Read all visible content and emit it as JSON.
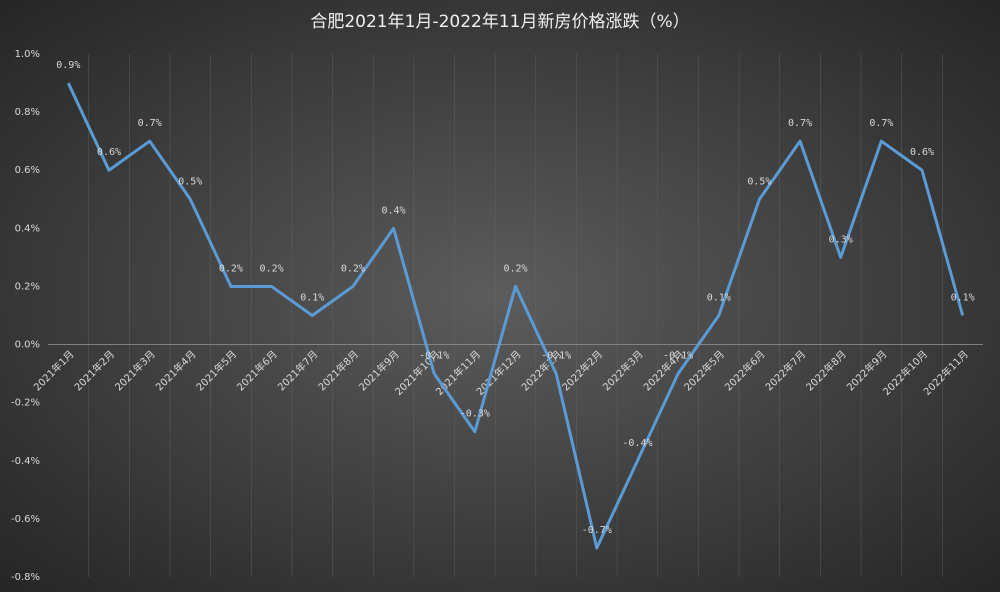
{
  "chart_data": {
    "type": "line",
    "title": "合肥2021年1月-2022年11月新房价格涨跌（%）",
    "categories": [
      "2021年1月",
      "2021年2月",
      "2021年3月",
      "2021年4月",
      "2021年5月",
      "2021年6月",
      "2021年7月",
      "2021年8月",
      "2021年9月",
      "2021年10月",
      "2021年11月",
      "2021年12月",
      "2022年1月",
      "2022年2月",
      "2022年3月",
      "2022年4月",
      "2022年5月",
      "2022年6月",
      "2022年7月",
      "2022年8月",
      "2022年9月",
      "2022年10月",
      "2022年11月"
    ],
    "values": [
      0.9,
      0.6,
      0.7,
      0.5,
      0.2,
      0.2,
      0.1,
      0.2,
      0.4,
      -0.1,
      -0.3,
      0.2,
      -0.1,
      -0.7,
      -0.4,
      -0.1,
      0.1,
      0.5,
      0.7,
      0.3,
      0.7,
      0.6,
      0.1
    ],
    "value_labels": [
      "0.9%",
      "0.6%",
      "0.7%",
      "0.5%",
      "0.2%",
      "0.2%",
      "0.1%",
      "0.2%",
      "0.4%",
      "-0.1%",
      "-0.3%",
      "0.2%",
      "-0.1%",
      "-0.7%",
      "-0.4%",
      "-0.1%",
      "0.1%",
      "0.5%",
      "0.7%",
      "0.3%",
      "0.7%",
      "0.6%",
      "0.1%"
    ],
    "color": "#5b9bd5",
    "ylim": [
      -0.8,
      1.0
    ],
    "yticks": [
      {
        "value": -0.8,
        "label": "-0.8%"
      },
      {
        "value": -0.6,
        "label": "-0.6%"
      },
      {
        "value": -0.4,
        "label": "-0.4%"
      },
      {
        "value": -0.2,
        "label": "-0.2%"
      },
      {
        "value": 0,
        "label": "0.0%"
      },
      {
        "value": 0.2,
        "label": "0.2%"
      },
      {
        "value": 0.4,
        "label": "0.4%"
      },
      {
        "value": 0.6,
        "label": "0.6%"
      },
      {
        "value": 0.8,
        "label": "0.8%"
      },
      {
        "value": 1.0,
        "label": "1.0%"
      }
    ],
    "grid": true
  }
}
